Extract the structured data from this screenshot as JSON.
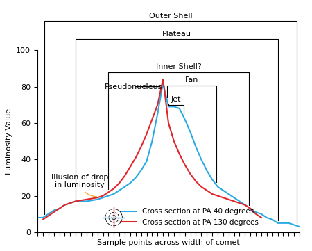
{
  "chart_data": {
    "type": "line",
    "x_label": "Sample points across width of comet",
    "y_label": "Luminosity Value",
    "x": [
      0,
      1,
      2,
      3,
      4,
      5,
      6,
      7,
      8,
      9,
      10,
      11,
      12,
      13,
      14,
      15,
      16,
      17,
      18,
      19,
      20,
      21,
      22,
      23,
      24,
      25,
      26,
      27,
      28,
      29,
      30,
      31,
      32,
      33,
      34,
      35,
      36,
      37,
      38,
      39,
      40,
      41,
      42,
      43,
      44,
      45,
      46,
      47,
      48
    ],
    "series": [
      {
        "name": "Cross section at PA 40 degrees",
        "color": "#29abe2",
        "values": [
          8,
          8,
          10,
          12,
          13,
          15,
          16,
          17,
          17,
          17,
          17.5,
          18,
          19,
          20,
          21,
          23,
          25,
          27,
          30,
          34,
          39,
          50,
          65,
          82,
          69,
          69,
          68,
          62,
          55,
          47,
          40,
          34,
          29,
          25,
          23,
          21,
          19,
          17,
          15,
          13,
          11,
          10,
          8,
          7,
          5,
          5,
          5,
          4,
          3
        ]
      },
      {
        "name": "Cross section at PA 130 degrees",
        "color": "#e0262b",
        "values": [
          null,
          7,
          9,
          11,
          13,
          15,
          16,
          17,
          17.5,
          18,
          18.5,
          19,
          20,
          22,
          24,
          27,
          31,
          36,
          41,
          47,
          54,
          62,
          70,
          84,
          60,
          50,
          43,
          37,
          32,
          28,
          25,
          23,
          21,
          20,
          19,
          18,
          17,
          16,
          15,
          13,
          10,
          8,
          null,
          null,
          null,
          null,
          null,
          null,
          null
        ]
      }
    ],
    "xlim": [
      0,
      48
    ],
    "xticks": [
      0,
      1,
      2,
      3,
      4,
      5,
      6,
      7,
      8,
      9,
      10,
      11,
      12,
      13,
      14,
      15,
      16,
      17,
      18,
      19,
      20,
      21,
      22,
      23,
      24,
      25,
      26,
      27,
      28,
      29,
      30,
      31,
      32,
      33,
      34,
      35,
      36,
      37,
      38,
      39,
      40,
      41,
      42,
      43,
      44,
      45,
      46,
      47,
      48
    ],
    "ylim": [
      0,
      100
    ],
    "yticks": [
      0,
      20,
      40,
      60,
      80,
      100
    ],
    "tick_labels": "y",
    "grid": false,
    "legend": "lower center",
    "spans": [
      {
        "label": "Outer Shell",
        "from": 1.25,
        "to": 47.5,
        "y": 116
      },
      {
        "label": "Plateau",
        "from": 7,
        "to": 44,
        "y": 106
      },
      {
        "label": "Inner Shell?",
        "from": 13,
        "to": 38.75,
        "y": 88
      },
      {
        "label": "Fan",
        "from": 23.75,
        "to": 32.75,
        "y": 80.5
      },
      {
        "label": "Jet",
        "from": 24,
        "to": 26.75,
        "y": 70
      }
    ],
    "annotations": [
      {
        "text": "Pseudonucleus",
        "x": 17.6,
        "y": 80,
        "point_x": 22.6,
        "point_y": 80,
        "color": "#000000"
      },
      {
        "text": "Illusion of drop\nin luminosity",
        "x": 7.75,
        "y": 28,
        "point_x": 11,
        "point_y": 19.5,
        "color": "#f7a823"
      }
    ]
  }
}
